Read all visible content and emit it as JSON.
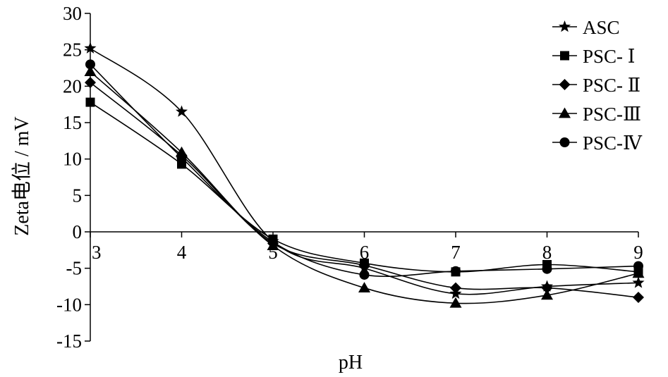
{
  "chart_data": {
    "type": "line",
    "x": [
      3,
      4,
      5,
      6,
      7,
      8,
      9
    ],
    "xlim": [
      3,
      9
    ],
    "ylim": [
      -15,
      30
    ],
    "y_ticks": [
      30,
      25,
      20,
      15,
      10,
      5,
      0,
      -5,
      -10,
      -15
    ],
    "x_tick_labels": [
      "3",
      "4",
      "5",
      "6",
      "7",
      "8",
      "9"
    ],
    "xlabel": "pH",
    "ylabel": "Zeta电位 / mV",
    "legend_position": "top-right",
    "grid": false,
    "smooth": true,
    "series": [
      {
        "name": "ASC",
        "marker": "star",
        "values": [
          25.2,
          16.5,
          -1.3,
          -5.0,
          -8.5,
          -7.5,
          -7.0
        ]
      },
      {
        "name": "PSC- Ⅰ",
        "marker": "square",
        "values": [
          17.8,
          9.3,
          -1.0,
          -4.3,
          -5.5,
          -4.5,
          -5.5
        ]
      },
      {
        "name": "PSC- Ⅱ",
        "marker": "diamond",
        "values": [
          20.5,
          10.5,
          -1.6,
          -4.6,
          -7.7,
          -7.7,
          -9.0
        ]
      },
      {
        "name": "PSC-Ⅲ",
        "marker": "triangle",
        "values": [
          22.0,
          10.9,
          -1.9,
          -7.7,
          -9.8,
          -8.7,
          -5.7
        ]
      },
      {
        "name": "PSC-Ⅳ",
        "marker": "circle",
        "values": [
          23.0,
          10.2,
          -1.4,
          -5.9,
          -5.4,
          -5.1,
          -4.7
        ]
      }
    ]
  }
}
